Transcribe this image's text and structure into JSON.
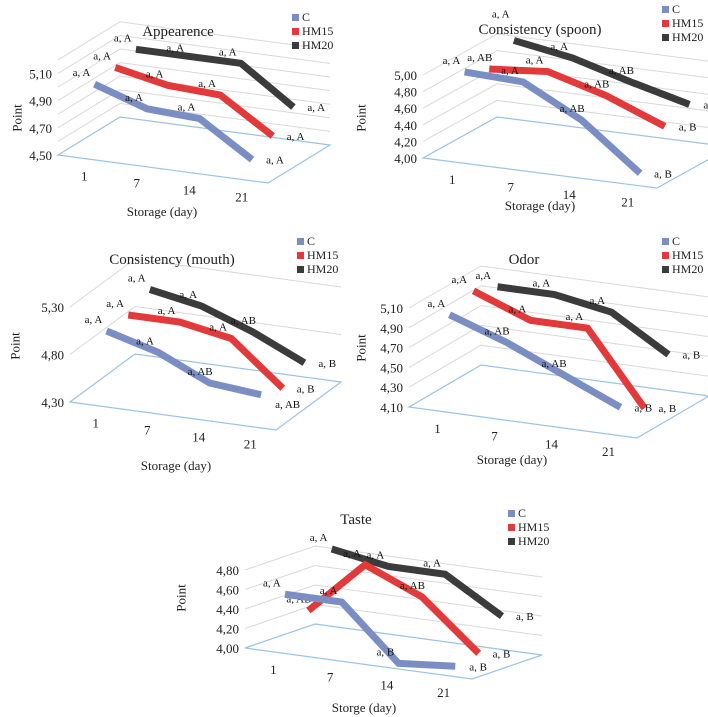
{
  "legend": [
    "C",
    "HM15",
    "HM20"
  ],
  "colors": {
    "C": "#7a8ec4",
    "HM15": "#e23a3a",
    "HM20": "#3b3b3b",
    "floor": "#9cc3e6",
    "grid": "#d9d9d9"
  },
  "chart_data": [
    {
      "type": "line",
      "title": "Appearence",
      "xlabel": "Storage (day)",
      "ylabel": "Point",
      "categories": [
        "1",
        "7",
        "14",
        "21"
      ],
      "ylim": [
        4.5,
        5.2
      ],
      "yticks": [
        "4,50",
        "4,70",
        "4,90",
        "5,10"
      ],
      "ytick_values": [
        4.5,
        4.7,
        4.9,
        5.1
      ],
      "grid_step": 0.1,
      "series": [
        {
          "name": "C",
          "values": [
            5.0,
            4.87,
            4.85,
            4.6
          ],
          "labels": [
            "a, A",
            "a, A",
            "a, A",
            "a, A"
          ]
        },
        {
          "name": "HM15",
          "values": [
            5.03,
            4.95,
            4.93,
            4.68
          ],
          "labels": [
            "a, A",
            "a, A",
            "a, A",
            "a, A"
          ]
        },
        {
          "name": "HM20",
          "values": [
            5.07,
            5.07,
            5.07,
            4.8
          ],
          "labels": [
            "a, A",
            "a, A",
            "a, A",
            "a, A"
          ]
        }
      ]
    },
    {
      "type": "line",
      "title": "Consistency (spoon)",
      "xlabel": "Storage (day)",
      "ylabel": "Point",
      "categories": [
        "1",
        "7",
        "14",
        "21"
      ],
      "ylim": [
        4.0,
        5.1
      ],
      "yticks": [
        "4,00",
        "4,20",
        "4,40",
        "4,60",
        "4,80",
        "5,00"
      ],
      "ytick_values": [
        4.0,
        4.2,
        4.4,
        4.6,
        4.8,
        5.0
      ],
      "grid_step": 0.2,
      "series": [
        {
          "name": "C",
          "values": [
            5.0,
            4.97,
            4.6,
            4.05
          ],
          "labels": [
            "a, A",
            "a, A",
            "a, AB",
            "a, B"
          ]
        },
        {
          "name": "HM15",
          "values": [
            4.87,
            4.93,
            4.73,
            4.45
          ],
          "labels": [
            "a, AB",
            "a, A",
            "a, AB",
            "a, B"
          ]
        },
        {
          "name": "HM20",
          "values": [
            5.05,
            4.93,
            4.73,
            4.55
          ],
          "labels": [
            "a, A",
            "a, A",
            "a, AB",
            "a, B"
          ]
        }
      ]
    },
    {
      "type": "line",
      "title": "Consistency (mouth)",
      "xlabel": "Storage (day)",
      "ylabel": "Point",
      "categories": [
        "1",
        "7",
        "14",
        "21"
      ],
      "ylim": [
        4.3,
        5.4
      ],
      "yticks": [
        "4,30",
        "4,80",
        "5,30"
      ],
      "ytick_values": [
        4.3,
        4.8,
        5.3
      ],
      "grid_step": 0.5,
      "series": [
        {
          "name": "C",
          "values": [
            5.0,
            4.85,
            4.6,
            4.55
          ],
          "labels": [
            "a, A",
            "a, A",
            "a, AB",
            "a, AB"
          ]
        },
        {
          "name": "HM15",
          "values": [
            5.0,
            5.0,
            4.9,
            4.45
          ],
          "labels": [
            "a, A",
            "a, A",
            "a, A",
            "a, B"
          ]
        },
        {
          "name": "HM20",
          "values": [
            5.1,
            5.0,
            4.8,
            4.55
          ],
          "labels": [
            "a, A",
            "a, A",
            "a, AB",
            "a, B"
          ]
        }
      ]
    },
    {
      "type": "line",
      "title": "Odor",
      "xlabel": "Storage (day)",
      "ylabel": "Point",
      "categories": [
        "1",
        "7",
        "14",
        "21"
      ],
      "ylim": [
        4.1,
        5.2
      ],
      "yticks": [
        "4,10",
        "4,30",
        "4,50",
        "4,70",
        "4,90",
        "5,10"
      ],
      "ytick_values": [
        4.1,
        4.3,
        4.5,
        4.7,
        4.9,
        5.1
      ],
      "grid_step": 0.2,
      "series": [
        {
          "name": "C",
          "values": [
            5.0,
            4.8,
            4.55,
            4.3
          ],
          "labels": [
            "a, A",
            "a, AB",
            "a, AB",
            "a, B"
          ]
        },
        {
          "name": "HM15",
          "values": [
            5.1,
            4.88,
            4.88,
            4.15
          ],
          "labels": [
            "a,A",
            "a, A",
            "a, A",
            "a, B"
          ]
        },
        {
          "name": "HM20",
          "values": [
            5.0,
            5.0,
            4.9,
            4.55
          ],
          "labels": [
            "a,A",
            "a, A",
            "a,A",
            "a, B"
          ]
        }
      ]
    },
    {
      "type": "line",
      "title": "Taste",
      "xlabel": "Storge (day)",
      "ylabel": "Point",
      "categories": [
        "1",
        "7",
        "14",
        "21"
      ],
      "ylim": [
        4.0,
        4.9
      ],
      "yticks": [
        "4,00",
        "4,20",
        "4,40",
        "4,60",
        "4,80"
      ],
      "ytick_values": [
        4.0,
        4.2,
        4.4,
        4.6,
        4.8
      ],
      "grid_step": 0.2,
      "series": [
        {
          "name": "C",
          "values": [
            4.55,
            4.55,
            4.0,
            4.05
          ],
          "labels": [
            "a, A",
            "a, A",
            "a, B",
            "a, B"
          ]
        },
        {
          "name": "HM15",
          "values": [
            4.3,
            4.85,
            4.6,
            4.1
          ],
          "labels": [
            "a, AB",
            "a, A",
            "a, AB",
            "a, B"
          ]
        },
        {
          "name": "HM20",
          "values": [
            4.85,
            4.75,
            4.75,
            4.4
          ],
          "labels": [
            "a, A",
            "a, A",
            "a, A",
            "a, B"
          ]
        }
      ]
    }
  ]
}
